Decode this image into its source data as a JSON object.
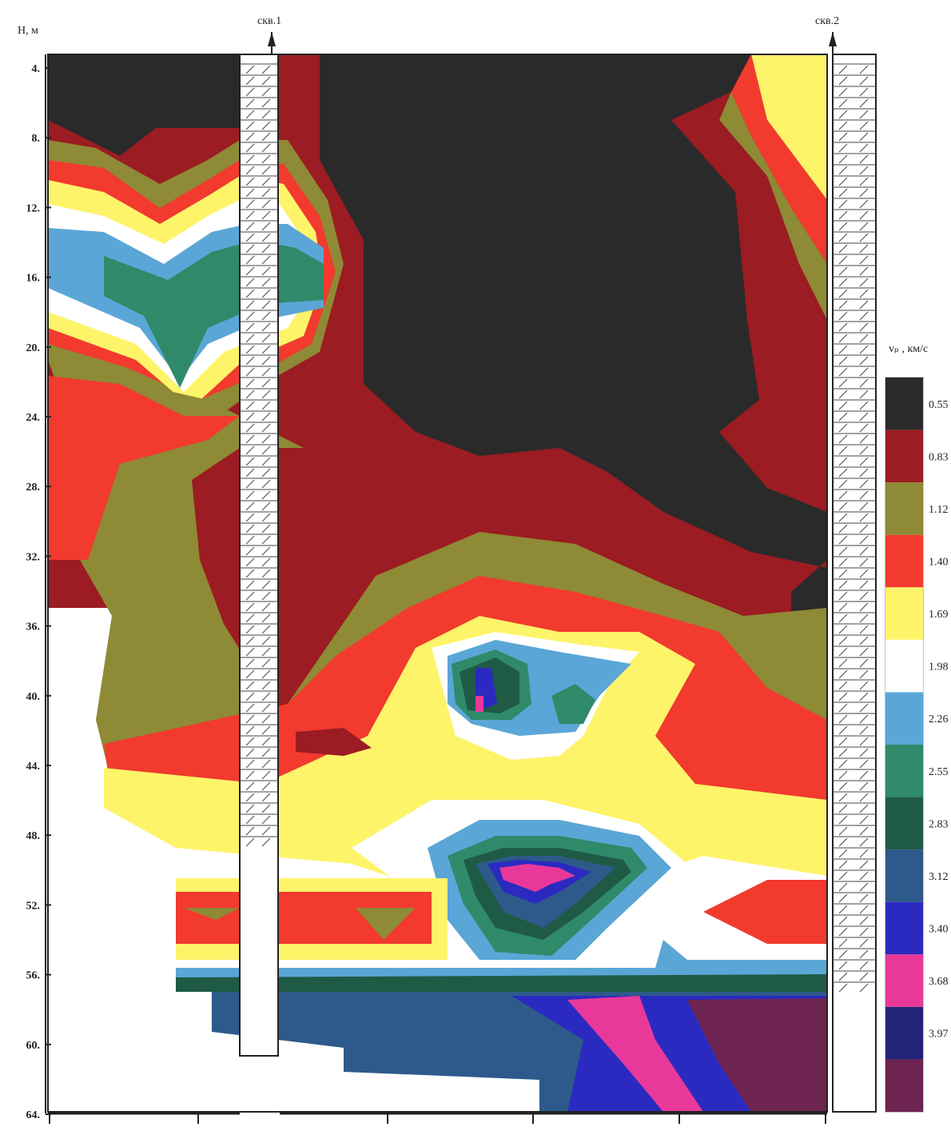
{
  "depth_axis": {
    "label": "H, м",
    "ticks": [
      {
        "value": 4,
        "label": "4."
      },
      {
        "value": 8,
        "label": "8."
      },
      {
        "value": 12,
        "label": "12."
      },
      {
        "value": 16,
        "label": "16."
      },
      {
        "value": 20,
        "label": "20."
      },
      {
        "value": 24,
        "label": "24."
      },
      {
        "value": 28,
        "label": "28."
      },
      {
        "value": 32,
        "label": "32."
      },
      {
        "value": 36,
        "label": "36."
      },
      {
        "value": 40,
        "label": "40."
      },
      {
        "value": 44,
        "label": "44."
      },
      {
        "value": 48,
        "label": "48."
      },
      {
        "value": 52,
        "label": "52."
      },
      {
        "value": 56,
        "label": "56."
      },
      {
        "value": 60,
        "label": "60."
      },
      {
        "value": 64,
        "label": "64."
      }
    ],
    "lim": [
      4,
      64
    ]
  },
  "wells": [
    "скв.1",
    "скв.2"
  ],
  "legend": {
    "title": "vₚ , км/с",
    "labels": [
      "0.55",
      "0.83",
      "1.12",
      "1.40",
      "1.69",
      "1.98",
      "2.26",
      "2.55",
      "2.83",
      "3.12",
      "3.40",
      "3.68",
      "3.97",
      null
    ],
    "colors": [
      "#2a2a2a",
      "#9b1c22",
      "#8e8a35",
      "#f23a2e",
      "#fdf46a",
      "#ffffff",
      "#5aa6d6",
      "#2f8a6a",
      "#1f5a45",
      "#2d5a8a",
      "#2b2ac0",
      "#e8399a",
      "#23237a",
      "#6e2450"
    ]
  }
}
